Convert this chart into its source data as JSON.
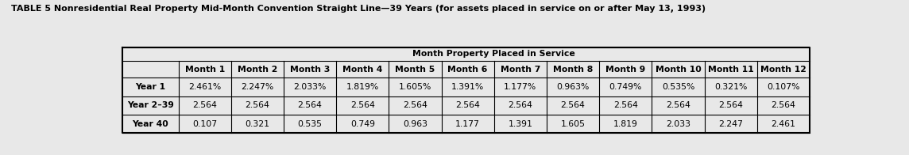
{
  "title": "TABLE 5 Nonresidential Real Property Mid-Month Convention Straight Line—39 Years (for assets placed in service on or after May 13, 1993)",
  "header_main": "Month Property Placed in Service",
  "col_headers": [
    "Month 1",
    "Month 2",
    "Month 3",
    "Month 4",
    "Month 5",
    "Month 6",
    "Month 7",
    "Month 8",
    "Month 9",
    "Month 10",
    "Month 11",
    "Month 12"
  ],
  "row_headers": [
    "Year 1",
    "Year 2–39",
    "Year 40"
  ],
  "rows": [
    [
      "2.461%",
      "2.247%",
      "2.033%",
      "1.819%",
      "1.605%",
      "1.391%",
      "1.177%",
      "0.963%",
      "0.749%",
      "0.535%",
      "0.321%",
      "0.107%"
    ],
    [
      "2.564",
      "2.564",
      "2.564",
      "2.564",
      "2.564",
      "2.564",
      "2.564",
      "2.564",
      "2.564",
      "2.564",
      "2.564",
      "2.564"
    ],
    [
      "0.107",
      "0.321",
      "0.535",
      "0.749",
      "0.963",
      "1.177",
      "1.391",
      "1.605",
      "1.819",
      "2.033",
      "2.247",
      "2.461"
    ]
  ],
  "bg_color": "#e8e8e8",
  "title_fontsize": 8.0,
  "header_fontsize": 7.8,
  "cell_fontsize": 7.8,
  "row_label_fontsize": 7.8
}
